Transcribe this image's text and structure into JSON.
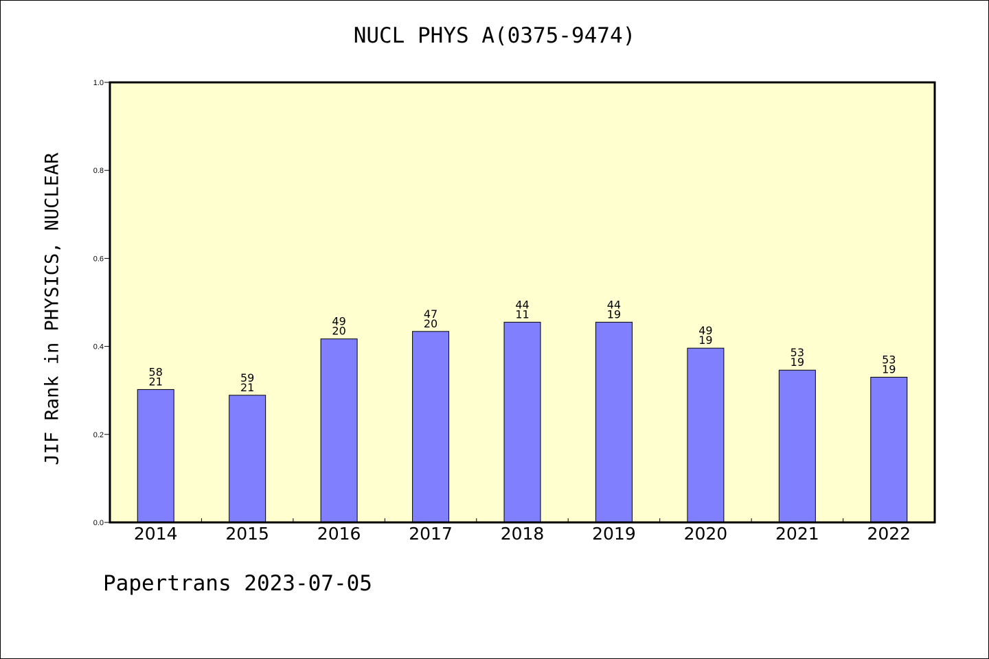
{
  "title": "NUCL PHYS A(0375-9474)",
  "footer": "Papertrans 2023-07-05",
  "colors": {
    "plot_background": "#ffffd0",
    "bar": "#8080ff",
    "axis": "#000000"
  },
  "chart_data": {
    "type": "bar",
    "title": "NUCL PHYS A(0375-9474)",
    "xlabel": "",
    "ylabel": "JIF Rank in PHYSICS, NUCLEAR",
    "ylim": [
      0,
      1
    ],
    "yticks": [
      "0.0",
      "0.2",
      "0.4",
      "0.6",
      "0.8",
      "1.0"
    ],
    "grid": false,
    "categories": [
      "2014",
      "2015",
      "2016",
      "2017",
      "2018",
      "2019",
      "2020",
      "2021",
      "2022"
    ],
    "values": [
      0.302,
      0.289,
      0.417,
      0.434,
      0.455,
      0.455,
      0.396,
      0.346,
      0.33
    ],
    "labels_top": [
      "58",
      "59",
      "49",
      "47",
      "44",
      "44",
      "49",
      "53",
      "53"
    ],
    "labels_bottom": [
      "21",
      "21",
      "20",
      "20",
      "11",
      "19",
      "19",
      "19",
      "19"
    ]
  }
}
